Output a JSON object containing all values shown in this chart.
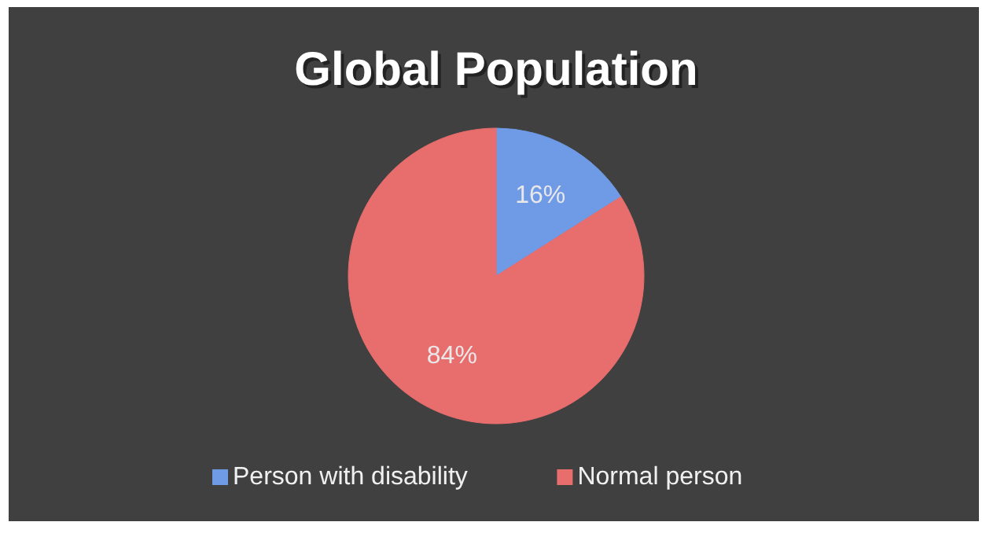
{
  "chart_data": {
    "type": "pie",
    "title": "Global Population",
    "categories": [
      "Person with disability",
      "Normal person"
    ],
    "values": [
      16,
      84
    ],
    "colors": [
      "#6f9ae6",
      "#e86d6d"
    ],
    "value_labels": [
      "16%",
      "84%"
    ],
    "legend": "bottom"
  }
}
